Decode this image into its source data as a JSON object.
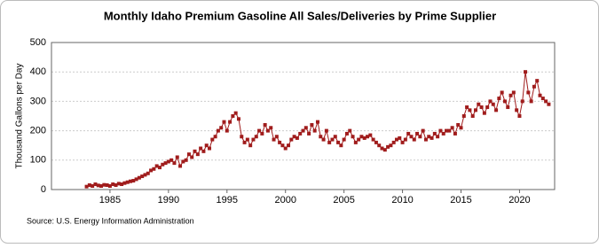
{
  "chart_data": {
    "type": "line",
    "title": "Monthly Idaho Premium Gasoline All Sales/Deliveries by Prime Supplier",
    "y_label": "Thousand Gallons per Day",
    "source": "Source: U.S. Energy Information Administration",
    "x": [
      1983,
      1983.25,
      1983.5,
      1983.75,
      1984,
      1984.25,
      1984.5,
      1984.75,
      1985,
      1985.25,
      1985.5,
      1985.75,
      1986,
      1986.25,
      1986.5,
      1986.75,
      1987,
      1987.25,
      1987.5,
      1987.75,
      1988,
      1988.25,
      1988.5,
      1988.75,
      1989,
      1989.25,
      1989.5,
      1989.75,
      1990,
      1990.25,
      1990.5,
      1990.75,
      1991,
      1991.25,
      1991.5,
      1991.75,
      1992,
      1992.25,
      1992.5,
      1992.75,
      1993,
      1993.25,
      1993.5,
      1993.75,
      1994,
      1994.25,
      1994.5,
      1994.75,
      1995,
      1995.25,
      1995.5,
      1995.75,
      1996,
      1996.25,
      1996.5,
      1996.75,
      1997,
      1997.25,
      1997.5,
      1997.75,
      1998,
      1998.25,
      1998.5,
      1998.75,
      1999,
      1999.25,
      1999.5,
      1999.75,
      2000,
      2000.25,
      2000.5,
      2000.75,
      2001,
      2001.25,
      2001.5,
      2001.75,
      2002,
      2002.25,
      2002.5,
      2002.75,
      2003,
      2003.25,
      2003.5,
      2003.75,
      2004,
      2004.25,
      2004.5,
      2004.75,
      2005,
      2005.25,
      2005.5,
      2005.75,
      2006,
      2006.25,
      2006.5,
      2006.75,
      2007,
      2007.25,
      2007.5,
      2007.75,
      2008,
      2008.25,
      2008.5,
      2008.75,
      2009,
      2009.25,
      2009.5,
      2009.75,
      2010,
      2010.25,
      2010.5,
      2010.75,
      2011,
      2011.25,
      2011.5,
      2011.75,
      2012,
      2012.25,
      2012.5,
      2012.75,
      2013,
      2013.25,
      2013.5,
      2013.75,
      2014,
      2014.25,
      2014.5,
      2014.75,
      2015,
      2015.25,
      2015.5,
      2015.75,
      2016,
      2016.25,
      2016.5,
      2016.75,
      2017,
      2017.25,
      2017.5,
      2017.75,
      2018,
      2018.25,
      2018.5,
      2018.75,
      2019,
      2019.25,
      2019.5,
      2019.75,
      2020,
      2020.25,
      2020.5,
      2020.75,
      2021,
      2021.25,
      2021.5,
      2021.75,
      2022,
      2022.25,
      2022.5
    ],
    "series": [
      {
        "name": "Idaho Premium Gasoline",
        "color": "#a01c1c",
        "values": [
          10,
          15,
          12,
          18,
          14,
          12,
          16,
          15,
          12,
          18,
          15,
          20,
          18,
          22,
          25,
          28,
          30,
          35,
          40,
          45,
          50,
          55,
          65,
          70,
          80,
          75,
          85,
          90,
          95,
          100,
          90,
          110,
          80,
          95,
          100,
          120,
          110,
          130,
          120,
          140,
          130,
          150,
          140,
          170,
          180,
          200,
          210,
          230,
          200,
          230,
          250,
          260,
          240,
          180,
          160,
          170,
          150,
          170,
          180,
          200,
          190,
          220,
          200,
          210,
          170,
          180,
          160,
          150,
          140,
          150,
          170,
          180,
          175,
          190,
          200,
          210,
          190,
          220,
          200,
          230,
          180,
          170,
          200,
          160,
          170,
          180,
          160,
          150,
          170,
          190,
          200,
          180,
          160,
          170,
          180,
          175,
          180,
          185,
          170,
          160,
          150,
          140,
          135,
          145,
          150,
          160,
          170,
          175,
          160,
          170,
          190,
          180,
          170,
          190,
          180,
          200,
          170,
          180,
          175,
          190,
          180,
          200,
          190,
          200,
          200,
          210,
          190,
          220,
          210,
          250,
          280,
          270,
          250,
          270,
          290,
          280,
          260,
          280,
          300,
          290,
          270,
          310,
          330,
          300,
          280,
          320,
          330,
          270,
          250,
          300,
          400,
          330,
          300,
          350,
          370,
          320,
          310,
          300,
          290
        ]
      }
    ],
    "xlim": [
      1980,
      2023
    ],
    "xticks": [
      1985,
      1990,
      1995,
      2000,
      2005,
      2010,
      2015,
      2020
    ],
    "ylim": [
      0,
      500
    ],
    "yticks": [
      0,
      100,
      200,
      300,
      400,
      500
    ],
    "grid": true
  }
}
